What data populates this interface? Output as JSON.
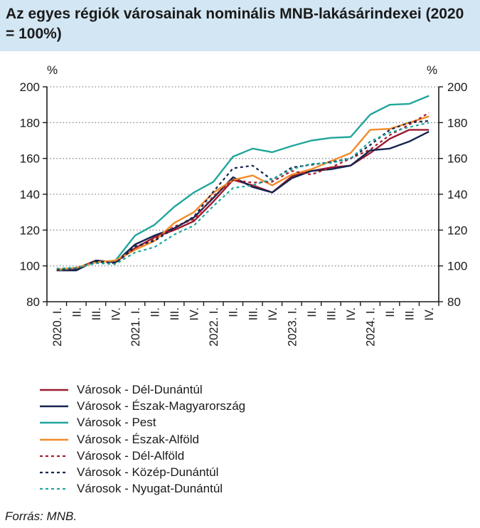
{
  "title": "Az egyes régiók városainak nominális MNB-lakásárindexei (2020 = 100%)",
  "source": "Forrás: MNB.",
  "chart_data": {
    "type": "line",
    "title": "Az egyes régiók városainak nominális MNB-lakásárindexei (2020 = 100%)",
    "ylabel_left": "%",
    "ylabel_right": "%",
    "ylim": [
      80,
      200
    ],
    "yticks": [
      80,
      100,
      120,
      140,
      160,
      180,
      200
    ],
    "grid": "horizontal-dotted",
    "x": [
      "2020. I.",
      "II.",
      "III.",
      "IV.",
      "2021. I.",
      "II.",
      "III.",
      "IV.",
      "2022. I.",
      "II.",
      "III.",
      "IV.",
      "2023. I.",
      "II.",
      "III.",
      "IV.",
      "2024. I.",
      "II.",
      "III.",
      "IV."
    ],
    "legend_position": "bottom",
    "series": [
      {
        "name": "Városok - Dél-Dunántúl",
        "color": "#9b1b30",
        "dash": "solid",
        "values": [
          97.5,
          98.5,
          103,
          102,
          110,
          116,
          120,
          125,
          136,
          148,
          145,
          141,
          150,
          153,
          155,
          156,
          163,
          171,
          176,
          176
        ]
      },
      {
        "name": "Városok - Észak-Magyarország",
        "color": "#14254f",
        "dash": "solid",
        "values": [
          97.5,
          97.5,
          103,
          102,
          112,
          117,
          121,
          127,
          138,
          149.5,
          144,
          141,
          149,
          153,
          154,
          156,
          164.5,
          165.5,
          169.5,
          175
        ]
      },
      {
        "name": "Városok - Pest",
        "color": "#21a69c",
        "dash": "solid",
        "values": [
          97.5,
          99,
          102,
          103,
          117,
          123,
          133,
          141,
          147,
          161,
          165.5,
          163.5,
          167,
          170,
          171.5,
          172,
          184.5,
          190,
          190.5,
          195
        ]
      },
      {
        "name": "Városok - Észak-Alföld",
        "color": "#f08c28",
        "dash": "solid",
        "values": [
          98,
          99,
          102,
          103,
          109,
          114,
          124,
          130,
          141,
          148,
          150.5,
          145,
          151,
          154,
          158.5,
          163,
          176,
          176.5,
          180,
          183.5
        ]
      },
      {
        "name": "Városok - Dél-Alföld",
        "color": "#a31c2d",
        "dash": "dotted",
        "values": [
          97.5,
          98.5,
          102.5,
          101.5,
          110,
          115,
          122,
          126,
          139,
          148,
          146.5,
          147,
          153,
          151,
          155,
          160,
          165,
          173,
          179,
          185.5
        ]
      },
      {
        "name": "Városok - Közép-Dunántúl",
        "color": "#14254f",
        "dash": "dotted",
        "values": [
          98,
          98.5,
          102.5,
          101.5,
          111,
          114,
          121,
          127.5,
          141.5,
          154.5,
          156,
          148,
          155,
          156.5,
          158,
          160,
          167.5,
          176,
          180,
          181
        ]
      },
      {
        "name": "Városok - Nyugat-Dunántúl",
        "color": "#21a69c",
        "dash": "dotted",
        "values": [
          98.5,
          99,
          101.5,
          101,
          107.5,
          110.5,
          117.5,
          122.5,
          133.5,
          143.5,
          145,
          148.5,
          154,
          157,
          157.5,
          160,
          169.5,
          174.5,
          177.5,
          180
        ]
      }
    ]
  }
}
